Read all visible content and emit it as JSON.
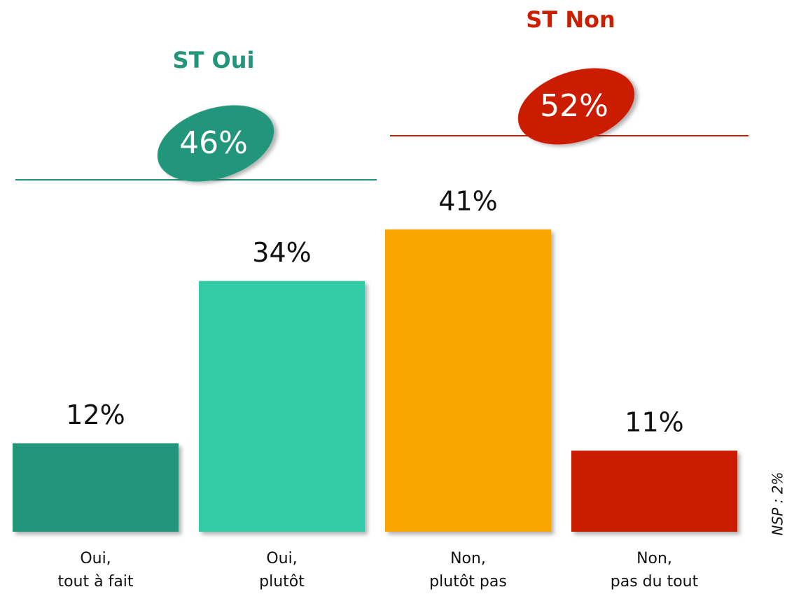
{
  "chart_data": {
    "type": "bar",
    "categories": [
      "Oui,\ntout à fait",
      "Oui,\nplutôt",
      "Non,\nplutôt pas",
      "Non,\npas du tout"
    ],
    "values": [
      12,
      34,
      41,
      11
    ],
    "value_labels": [
      "12%",
      "34%",
      "41%",
      "11%"
    ],
    "colors": [
      "#22967a",
      "#33cba6",
      "#fba600",
      "#cc1f00"
    ],
    "groups": [
      {
        "name": "ST Oui",
        "value": 46,
        "value_label": "46%",
        "color": "#22967a"
      },
      {
        "name": "ST Non",
        "value": 52,
        "value_label": "52%",
        "color": "#cc1f00"
      }
    ],
    "note": "NSP : 2%"
  }
}
